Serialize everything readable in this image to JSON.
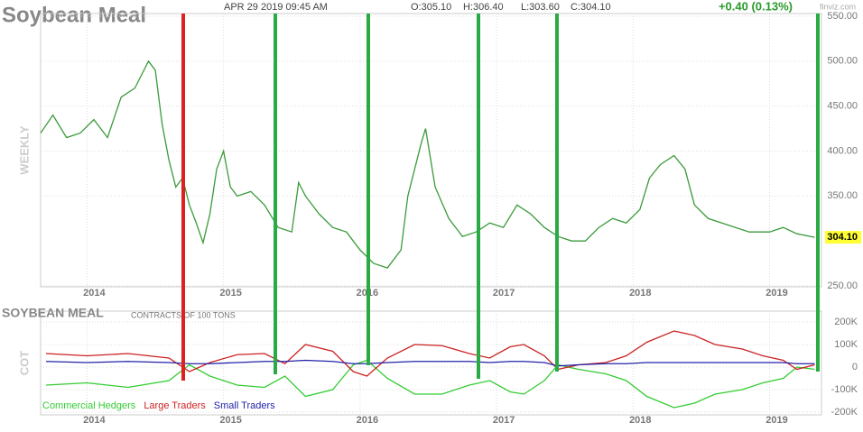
{
  "header": {
    "title": "Soybean Meal",
    "datetime": "APR 29 2019 09:45 AM",
    "open": "O:305.10",
    "high": "H:306.40",
    "low": "L:303.60",
    "close": "C:304.10",
    "change": "+0.40 (0.13%)",
    "source": "finviz.com"
  },
  "chart_data": [
    {
      "type": "line",
      "ylabel": "WEEKLY",
      "color": "#3a9a3a",
      "x": [
        2013.66,
        2013.75,
        2013.85,
        2013.95,
        2014.05,
        2014.15,
        2014.25,
        2014.35,
        2014.45,
        2014.5,
        2014.55,
        2014.6,
        2014.65,
        2014.7,
        2014.75,
        2014.8,
        2014.85,
        2014.9,
        2014.95,
        2015.0,
        2015.05,
        2015.1,
        2015.2,
        2015.3,
        2015.4,
        2015.5,
        2015.55,
        2015.6,
        2015.7,
        2015.8,
        2015.9,
        2016.0,
        2016.1,
        2016.2,
        2016.3,
        2016.35,
        2016.45,
        2016.48,
        2016.55,
        2016.65,
        2016.75,
        2016.85,
        2016.95,
        2017.05,
        2017.15,
        2017.25,
        2017.35,
        2017.45,
        2017.55,
        2017.65,
        2017.75,
        2017.85,
        2017.95,
        2018.05,
        2018.12,
        2018.2,
        2018.3,
        2018.38,
        2018.45,
        2018.55,
        2018.65,
        2018.75,
        2018.85,
        2019.0,
        2019.1,
        2019.2,
        2019.33
      ],
      "values": [
        420,
        440,
        415,
        420,
        435,
        415,
        460,
        470,
        500,
        490,
        430,
        390,
        360,
        370,
        340,
        320,
        298,
        330,
        380,
        400,
        360,
        350,
        355,
        340,
        315,
        310,
        365,
        350,
        330,
        315,
        310,
        290,
        275,
        270,
        290,
        350,
        410,
        425,
        360,
        325,
        305,
        310,
        320,
        315,
        340,
        330,
        315,
        305,
        300,
        300,
        315,
        325,
        320,
        335,
        370,
        385,
        395,
        380,
        340,
        325,
        320,
        315,
        310,
        310,
        315,
        308,
        304.1
      ],
      "last_value_label": "304.10",
      "xlim": [
        2013.66,
        2019.38
      ],
      "xticks": [
        2014,
        2015,
        2016,
        2017,
        2018,
        2019
      ],
      "ylim": [
        250,
        550
      ],
      "yticks": [
        {
          "value": 250,
          "label": "250.00"
        },
        {
          "value": 350,
          "label": "350.00"
        },
        {
          "value": 400,
          "label": "400.00"
        },
        {
          "value": 450,
          "label": "450.00"
        },
        {
          "value": 500,
          "label": "500.00"
        },
        {
          "value": 550,
          "label": "550.00"
        }
      ],
      "grid": true
    },
    {
      "type": "line",
      "title": "SOYBEAN MEAL",
      "subtitle": "CONTRACTS OF 100 TONS",
      "ylabel": "COT",
      "x": [
        2013.7,
        2014.0,
        2014.3,
        2014.6,
        2014.75,
        2014.9,
        2015.1,
        2015.3,
        2015.45,
        2015.6,
        2015.8,
        2015.95,
        2016.05,
        2016.2,
        2016.4,
        2016.6,
        2016.8,
        2016.95,
        2017.1,
        2017.2,
        2017.35,
        2017.45,
        2017.6,
        2017.8,
        2017.95,
        2018.1,
        2018.3,
        2018.45,
        2018.6,
        2018.8,
        2018.95,
        2019.1,
        2019.2,
        2019.33
      ],
      "series": [
        {
          "name": "Commercial Hedgers",
          "color": "#33cc33",
          "values": [
            -80000,
            -70000,
            -90000,
            -60000,
            10000,
            -40000,
            -80000,
            -90000,
            -40000,
            -130000,
            -100000,
            10000,
            30000,
            -50000,
            -120000,
            -120000,
            -80000,
            -60000,
            -110000,
            -120000,
            -60000,
            10000,
            -10000,
            -30000,
            -60000,
            -130000,
            -180000,
            -160000,
            -120000,
            -100000,
            -70000,
            -50000,
            0,
            -10000
          ]
        },
        {
          "name": "Large Traders",
          "color": "#cc2222",
          "values": [
            60000,
            50000,
            60000,
            40000,
            -20000,
            20000,
            55000,
            60000,
            15000,
            100000,
            70000,
            -20000,
            -40000,
            40000,
            100000,
            95000,
            60000,
            40000,
            90000,
            100000,
            50000,
            -10000,
            10000,
            20000,
            50000,
            110000,
            160000,
            140000,
            100000,
            80000,
            50000,
            30000,
            -10000,
            10000
          ]
        },
        {
          "name": "Small Traders",
          "color": "#2222aa",
          "values": [
            25000,
            20000,
            25000,
            20000,
            15000,
            15000,
            20000,
            25000,
            25000,
            30000,
            25000,
            15000,
            15000,
            20000,
            25000,
            25000,
            25000,
            20000,
            25000,
            25000,
            20000,
            5000,
            10000,
            15000,
            15000,
            20000,
            20000,
            20000,
            20000,
            20000,
            20000,
            20000,
            15000,
            15000
          ]
        }
      ],
      "xlim": [
        2013.66,
        2019.38
      ],
      "xticks": [
        2014,
        2015,
        2016,
        2017,
        2018,
        2019
      ],
      "ylim": [
        -200000,
        200000
      ],
      "yticks": [
        {
          "value": -200000,
          "label": "-200K"
        },
        {
          "value": -100000,
          "label": "-100K"
        },
        0,
        {
          "value": 100000,
          "label": "100K"
        },
        {
          "value": 200000,
          "label": "200K"
        }
      ],
      "grid": true
    }
  ]
}
